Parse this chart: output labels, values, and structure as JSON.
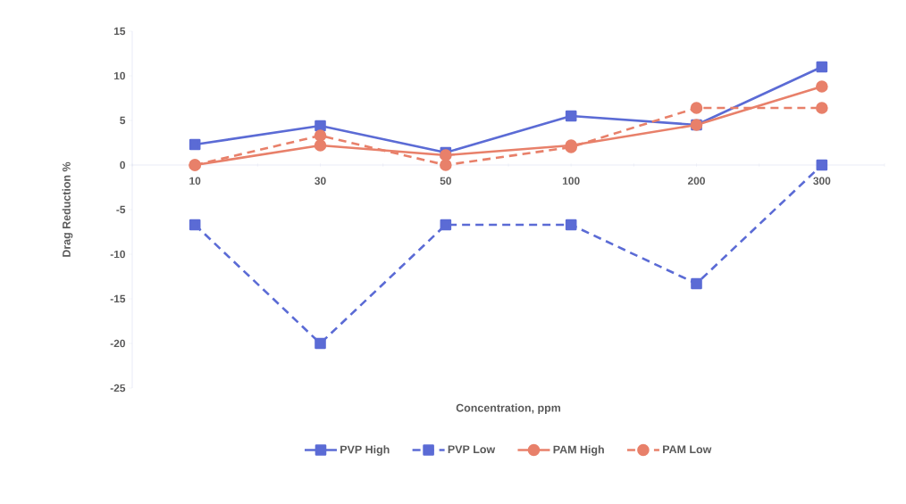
{
  "chart_data": {
    "type": "line",
    "xlabel": "Concentration, ppm",
    "ylabel": "Drag Reduction %",
    "categories": [
      "10",
      "30",
      "50",
      "100",
      "200",
      "300"
    ],
    "ylim": [
      -25,
      15
    ],
    "yticks": [
      -25,
      -20,
      -15,
      -10,
      -5,
      0,
      5,
      10,
      15
    ],
    "grid": false,
    "legend": "bottom",
    "series": [
      {
        "name": "PVP High",
        "color": "#5b6bd5",
        "marker": "square",
        "line_style": "solid",
        "values": [
          2.3,
          4.4,
          1.4,
          5.5,
          4.5,
          11
        ]
      },
      {
        "name": "PVP Low",
        "color": "#5b6bd5",
        "marker": "square",
        "line_style": "dashed",
        "values": [
          -6.7,
          -20,
          -6.7,
          -6.7,
          -13.3,
          0
        ]
      },
      {
        "name": "PAM High",
        "color": "#e8806a",
        "marker": "circle",
        "line_style": "solid",
        "values": [
          0,
          2.2,
          1.1,
          2.2,
          4.5,
          8.8
        ]
      },
      {
        "name": "PAM Low",
        "color": "#e8806a",
        "marker": "circle",
        "line_style": "dashed",
        "values": [
          0,
          3.3,
          0,
          2,
          6.4,
          6.4
        ]
      }
    ]
  }
}
